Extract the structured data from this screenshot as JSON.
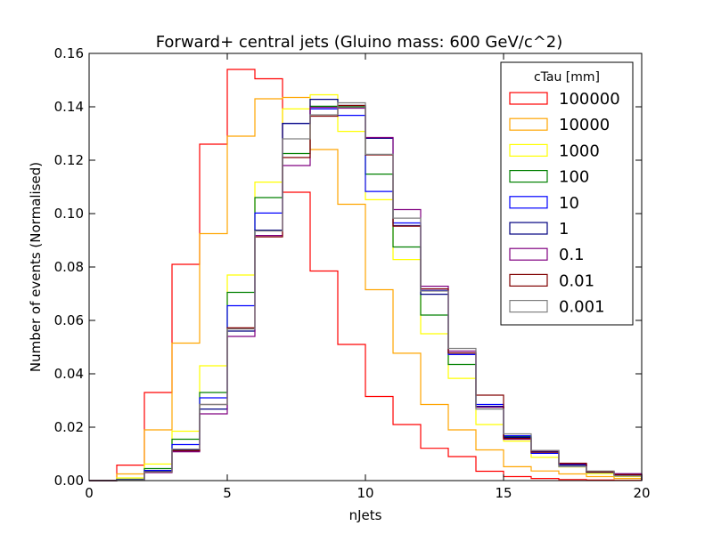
{
  "chart_data": {
    "type": "line",
    "title": "Forward+ central jets (Gluino mass: 600 GeV/c^2)",
    "xlabel": "nJets",
    "ylabel": "Number of events (Normalised)",
    "xlim": [
      0,
      20
    ],
    "ylim": [
      0,
      0.16
    ],
    "x_ticks": [
      "0",
      "5",
      "10",
      "15",
      "20"
    ],
    "y_ticks": [
      "0.00",
      "0.02",
      "0.04",
      "0.06",
      "0.08",
      "0.10",
      "0.12",
      "0.14",
      "0.16"
    ],
    "grid": false,
    "legend": {
      "title": "cTau [mm]",
      "placement": "top-right"
    },
    "bin_edges": [
      0,
      1,
      2,
      3,
      4,
      5,
      6,
      7,
      8,
      9,
      10,
      11,
      12,
      13,
      14,
      15,
      16,
      17,
      18,
      19,
      20
    ],
    "series": [
      {
        "name": "100000",
        "color": "#ff0000",
        "values": [
          0,
          0.0058,
          0.033,
          0.081,
          0.126,
          0.154,
          0.1505,
          0.108,
          0.0785,
          0.051,
          0.0315,
          0.021,
          0.0121,
          0.009,
          0.0035,
          0.0015,
          0.0008,
          0.0004,
          0.0002,
          0.0001
        ]
      },
      {
        "name": "10000",
        "color": "#ffa500",
        "values": [
          0,
          0.0025,
          0.019,
          0.0515,
          0.0925,
          0.129,
          0.143,
          0.1435,
          0.124,
          0.1035,
          0.0715,
          0.0477,
          0.0285,
          0.019,
          0.0115,
          0.0052,
          0.0036,
          0.0025,
          0.0015,
          0.0008
        ]
      },
      {
        "name": "1000",
        "color": "#ffff00",
        "values": [
          0,
          0.001,
          0.0062,
          0.0185,
          0.043,
          0.077,
          0.1118,
          0.1392,
          0.1445,
          0.1308,
          0.1052,
          0.0828,
          0.055,
          0.0383,
          0.021,
          0.0148,
          0.0087,
          0.0051,
          0.0026,
          0.0015
        ]
      },
      {
        "name": "100",
        "color": "#008000",
        "values": [
          0,
          0.0005,
          0.0045,
          0.0155,
          0.033,
          0.0705,
          0.106,
          0.1225,
          0.1402,
          0.14,
          0.1148,
          0.0875,
          0.062,
          0.0435,
          0.0275,
          0.0165,
          0.0113,
          0.0058,
          0.0031,
          0.0021
        ]
      },
      {
        "name": "10",
        "color": "#0000ff",
        "values": [
          0,
          0.0004,
          0.0038,
          0.0135,
          0.031,
          0.0655,
          0.1002,
          0.1338,
          0.1392,
          0.1368,
          0.1083,
          0.0965,
          0.0712,
          0.0472,
          0.0285,
          0.0168,
          0.0102,
          0.0061,
          0.0033,
          0.0021
        ]
      },
      {
        "name": "1",
        "color": "#000080",
        "values": [
          0,
          0.0004,
          0.0035,
          0.0115,
          0.0268,
          0.056,
          0.0938,
          0.1338,
          0.1428,
          0.1405,
          0.1282,
          0.0955,
          0.0698,
          0.0478,
          0.0278,
          0.0162,
          0.0108,
          0.0058,
          0.0031,
          0.0024
        ]
      },
      {
        "name": "0.1",
        "color": "#800080",
        "values": [
          0,
          0.0003,
          0.003,
          0.0108,
          0.025,
          0.054,
          0.0918,
          0.118,
          0.1398,
          0.1395,
          0.1285,
          0.1015,
          0.0728,
          0.0485,
          0.0275,
          0.0155,
          0.0112,
          0.0063,
          0.0034,
          0.0026
        ]
      },
      {
        "name": "0.01",
        "color": "#800000",
        "values": [
          0,
          0.0003,
          0.0032,
          0.0112,
          0.0285,
          0.0572,
          0.0913,
          0.121,
          0.1365,
          0.1405,
          0.122,
          0.0953,
          0.0718,
          0.0478,
          0.032,
          0.0158,
          0.0106,
          0.0065,
          0.0033,
          0.0022
        ]
      },
      {
        "name": "0.001",
        "color": "#808080",
        "values": [
          0,
          0.0003,
          0.0033,
          0.0118,
          0.0285,
          0.0568,
          0.0935,
          0.128,
          0.137,
          0.1415,
          0.1222,
          0.0983,
          0.071,
          0.0495,
          0.0268,
          0.0175,
          0.0113,
          0.0052,
          0.0036,
          0.0017
        ]
      }
    ]
  }
}
